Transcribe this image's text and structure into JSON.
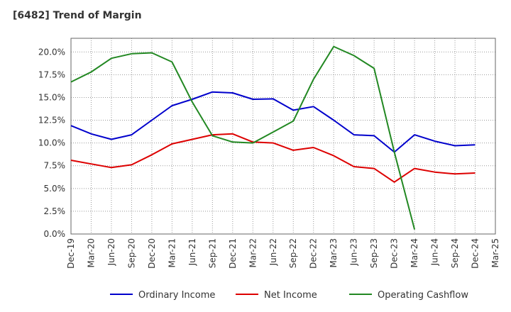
{
  "chart_data": {
    "type": "line",
    "title": "[6482]  Trend of Margin",
    "xlabel": "",
    "ylabel": "",
    "ylim": [
      0,
      21.5
    ],
    "grid": true,
    "legend_position": "bottom",
    "categories": [
      "Dec-19",
      "Mar-20",
      "Jun-20",
      "Sep-20",
      "Dec-20",
      "Mar-21",
      "Jun-21",
      "Sep-21",
      "Dec-21",
      "Mar-22",
      "Jun-22",
      "Sep-22",
      "Dec-22",
      "Mar-23",
      "Jun-23",
      "Sep-23",
      "Dec-23",
      "Mar-24",
      "Jun-24",
      "Sep-24",
      "Dec-24",
      "Mar-25"
    ],
    "y_ticks": [
      "0.0%",
      "2.5%",
      "5.0%",
      "7.5%",
      "10.0%",
      "12.5%",
      "15.0%",
      "17.5%",
      "20.0%"
    ],
    "y_tick_values": [
      0,
      2.5,
      5,
      7.5,
      10,
      12.5,
      15,
      17.5,
      20
    ],
    "series": [
      {
        "name": "Ordinary Income",
        "color": "#0000cc",
        "values": [
          11.9,
          11.0,
          10.4,
          10.9,
          12.5,
          14.1,
          14.8,
          15.6,
          15.5,
          14.8,
          14.85,
          13.6,
          14.0,
          12.5,
          10.9,
          10.8,
          9.0,
          10.9,
          10.2,
          9.7,
          9.8,
          null
        ]
      },
      {
        "name": "Net Income",
        "color": "#dd0000",
        "values": [
          8.1,
          7.7,
          7.3,
          7.6,
          8.7,
          9.9,
          10.4,
          10.9,
          11.0,
          10.1,
          10.0,
          9.2,
          9.5,
          8.6,
          7.4,
          7.2,
          5.7,
          7.2,
          6.8,
          6.6,
          6.7,
          null
        ]
      },
      {
        "name": "Operating Cashflow",
        "color": "#228822",
        "values": [
          16.7,
          17.8,
          19.3,
          19.8,
          19.9,
          18.9,
          14.5,
          10.8,
          10.1,
          10.0,
          11.2,
          12.4,
          17.0,
          20.6,
          19.6,
          18.2,
          9.0,
          0.5,
          null,
          null,
          null,
          null
        ]
      }
    ]
  }
}
